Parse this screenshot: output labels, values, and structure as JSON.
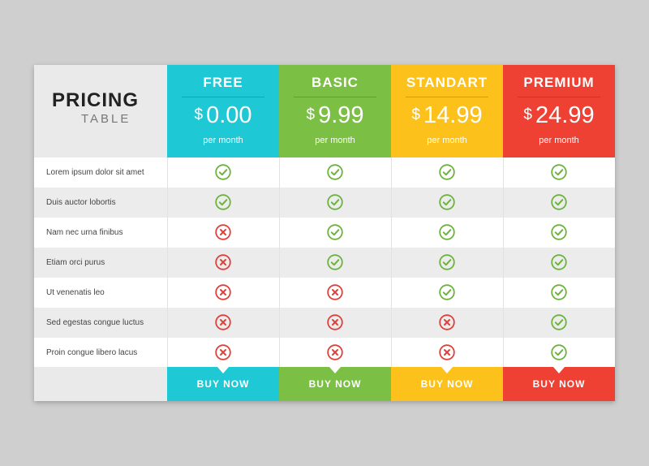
{
  "table": {
    "title": "PRICING",
    "subtitle": "TABLE"
  },
  "features": [
    "Lorem ipsum dolor sit amet",
    "Duis auctor lobortis",
    "Nam nec urna finibus",
    "Etiam orci purus",
    "Ut venenatis leo",
    "Sed egestas congue luctus",
    "Proin congue libero lacus"
  ],
  "plans": [
    {
      "name": "FREE",
      "currency": "$",
      "price": "0.00",
      "period": "per month",
      "button": "BUY NOW",
      "color": "#1ec8d4",
      "included": [
        true,
        true,
        false,
        false,
        false,
        false,
        false
      ]
    },
    {
      "name": "BASIC",
      "currency": "$",
      "price": "9.99",
      "period": "per month",
      "button": "BUY NOW",
      "color": "#7cbf45",
      "included": [
        true,
        true,
        true,
        true,
        false,
        false,
        false
      ]
    },
    {
      "name": "STANDART",
      "currency": "$",
      "price": "14.99",
      "period": "per month",
      "button": "BUY NOW",
      "color": "#fcc21b",
      "included": [
        true,
        true,
        true,
        true,
        true,
        false,
        false
      ]
    },
    {
      "name": "PREMIUM",
      "currency": "$",
      "price": "24.99",
      "period": "per month",
      "button": "BUY NOW",
      "color": "#ef4034",
      "included": [
        true,
        true,
        true,
        true,
        true,
        true,
        true
      ]
    }
  ],
  "colors": {
    "check": "#6cb33e",
    "cross": "#e0403a"
  }
}
